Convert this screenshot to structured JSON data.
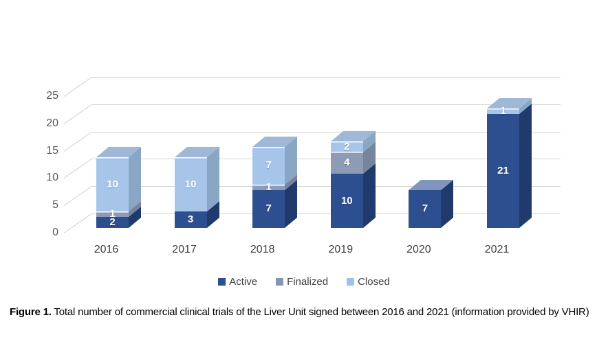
{
  "figure": {
    "caption_label": "Figure 1.",
    "caption_text": " Total number of commercial clinical trials of the Liver Unit signed between 2016 and 2021 (information provided by VHIR)"
  },
  "legend": {
    "items": [
      {
        "label": "Active",
        "color": "#2E4F8F"
      },
      {
        "label": "Finalized",
        "color": "#8496B0"
      },
      {
        "label": "Closed",
        "color": "#9DC3E6"
      }
    ]
  },
  "chart_data": {
    "type": "bar",
    "subtype": "stacked-3d-column",
    "title": "",
    "xlabel": "",
    "ylabel": "",
    "categories": [
      "2016",
      "2017",
      "2018",
      "2019",
      "2020",
      "2021"
    ],
    "series": [
      {
        "name": "Active",
        "color": "#2E4F8F",
        "color_side": "#1F3A6B",
        "color_top": "#8196BC",
        "values": [
          2,
          3,
          7,
          10,
          7,
          21
        ]
      },
      {
        "name": "Finalized",
        "color": "#8D9CB4",
        "color_side": "#74859D",
        "color_top": "#AFBACB",
        "values": [
          1,
          0,
          1,
          4,
          0,
          0
        ]
      },
      {
        "name": "Closed",
        "color": "#A6C5E8",
        "color_side": "#8AA6C5",
        "color_top": "#9FB8D6",
        "values": [
          10,
          10,
          7,
          2,
          0,
          1
        ]
      }
    ],
    "y_ticks": [
      0,
      5,
      10,
      15,
      20,
      25
    ],
    "ylim": [
      0,
      25
    ],
    "grid": true,
    "data_labels": true,
    "legend_position": "bottom"
  }
}
